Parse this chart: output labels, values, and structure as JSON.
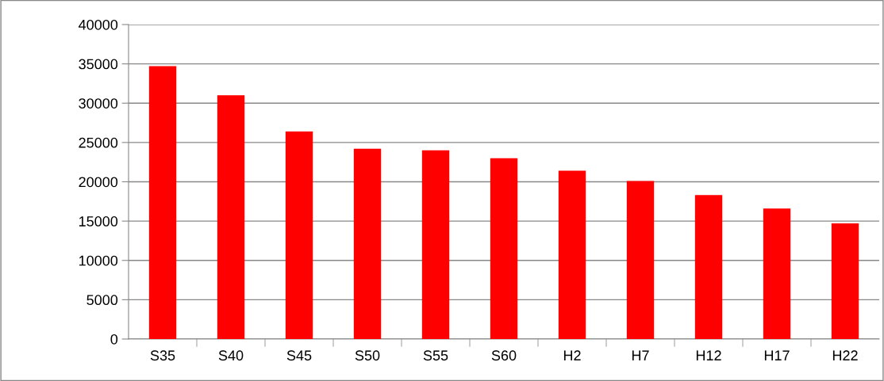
{
  "chart_data": {
    "type": "bar",
    "categories": [
      "S35",
      "S40",
      "S45",
      "S50",
      "S55",
      "S60",
      "H2",
      "H7",
      "H12",
      "H17",
      "H22"
    ],
    "values": [
      34700,
      31000,
      26400,
      24200,
      24000,
      23000,
      21400,
      20100,
      18300,
      16600,
      14700
    ],
    "color": "#ff0000",
    "ylim": [
      0,
      40000
    ],
    "yticks": [
      0,
      5000,
      10000,
      15000,
      20000,
      25000,
      30000,
      35000,
      40000
    ],
    "grid": "y",
    "legend": false
  }
}
